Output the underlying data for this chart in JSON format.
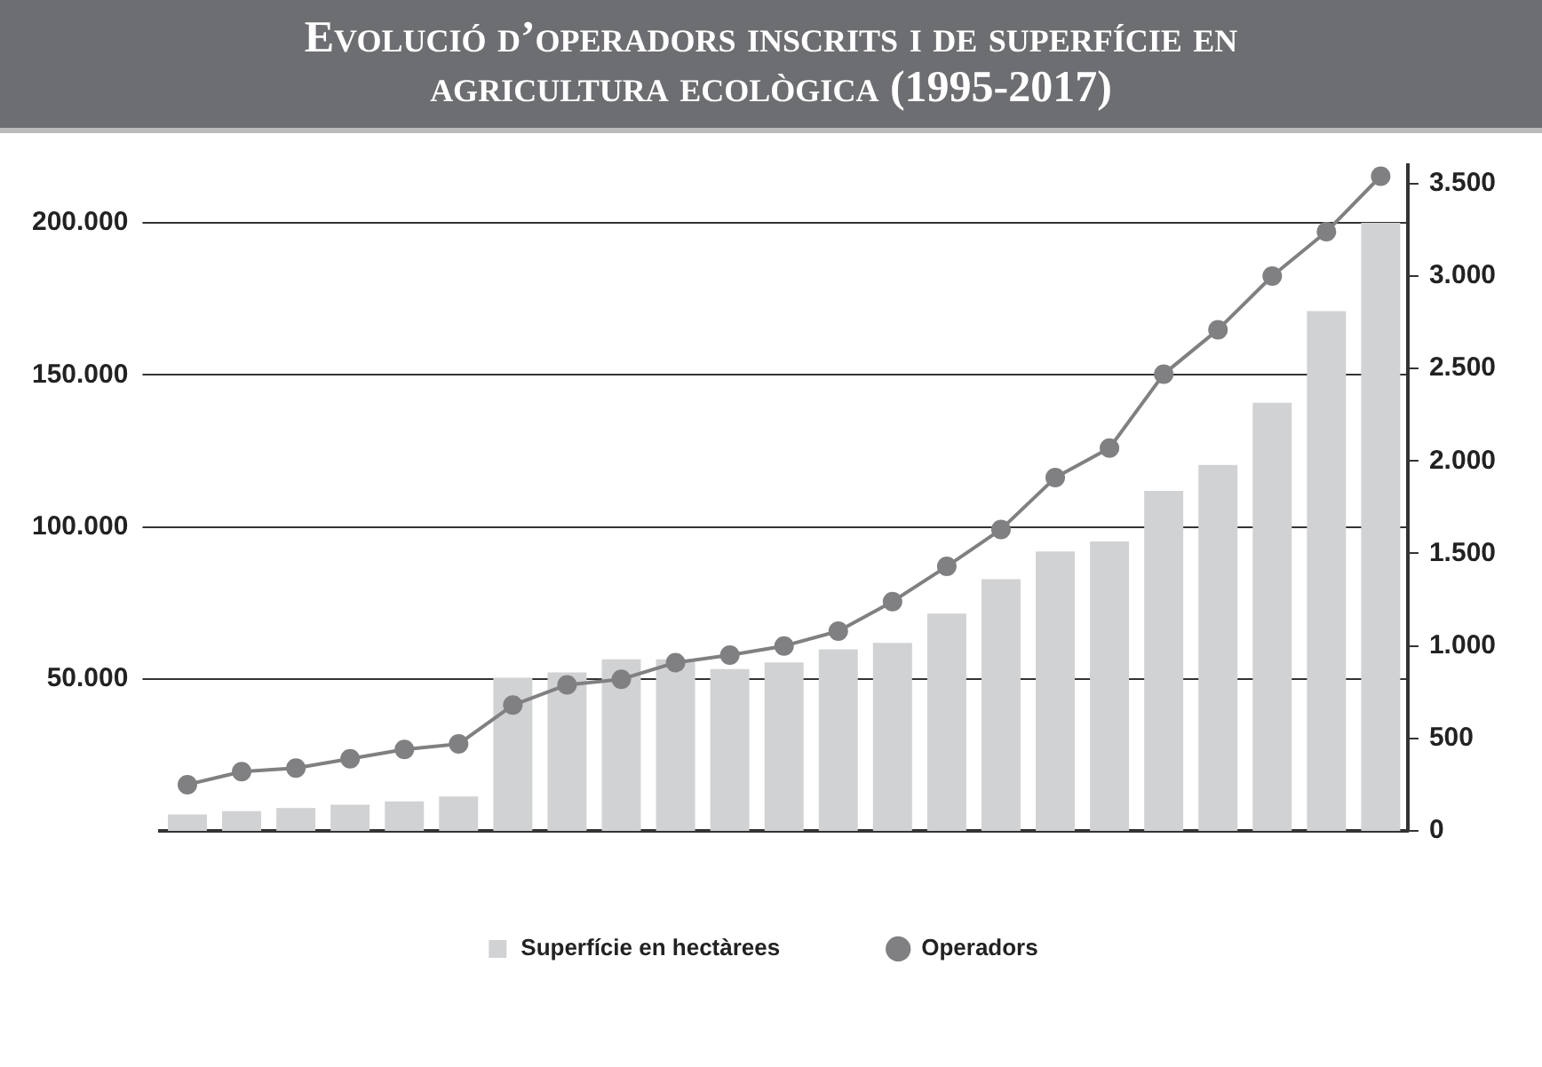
{
  "chart_data": {
    "type": "bar",
    "title": "Evolució d’operadors inscrits i de superfície en agricultura ecològica (1995-2017)",
    "categories": [
      null,
      null,
      null,
      null,
      null,
      null,
      null,
      null,
      null,
      null,
      null,
      null,
      null,
      null,
      null,
      null,
      null,
      null,
      null,
      null,
      null,
      null,
      null
    ],
    "series": [
      {
        "name": "Superfície en hectàrees",
        "color": "#d1d2d4",
        "values": [
          5400,
          6500,
          7500,
          8600,
          9700,
          11300,
          50400,
          52100,
          56400,
          56400,
          53200,
          55400,
          59700,
          61800,
          71500,
          82800,
          91900,
          95200,
          111800,
          120400,
          140800,
          171000,
          200000
        ]
      },
      {
        "name": "Operadors",
        "type": "line",
        "axis": "y2",
        "color": "#808083",
        "values": [
          250,
          320,
          340,
          390,
          440,
          470,
          680,
          790,
          820,
          910,
          950,
          1000,
          1080,
          1240,
          1430,
          1630,
          1910,
          2070,
          2470,
          2710,
          3000,
          3240,
          3540
        ]
      }
    ],
    "ylim": [
      0,
      219000
    ],
    "yticks": [
      {
        "value": 50000,
        "label": "50.000"
      },
      {
        "value": 100000,
        "label": "100.000"
      },
      {
        "value": 150000,
        "label": "150.000"
      },
      {
        "value": 200000,
        "label": "200.000"
      }
    ],
    "y2lim": [
      0,
      3600
    ],
    "y2ticks": [
      0,
      500,
      {
        "value": 1000,
        "label": "1.000"
      },
      {
        "value": 1500,
        "label": "1.500"
      },
      {
        "value": 2000,
        "label": "2.000"
      },
      {
        "value": 2500,
        "label": "2.500"
      },
      {
        "value": 3000,
        "label": "3.000"
      },
      {
        "value": 3500,
        "label": "3.500"
      }
    ],
    "grid": "y",
    "legend": "bottom",
    "marker": "circle",
    "tick_labels": "y"
  }
}
